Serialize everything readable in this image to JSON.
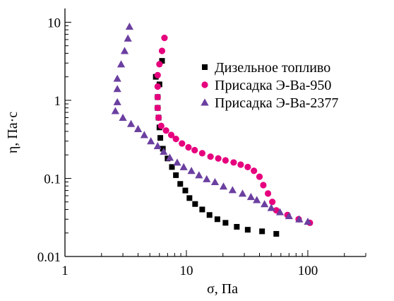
{
  "chart_data": {
    "type": "scatter",
    "title": "",
    "xlabel": "σ, Па",
    "ylabel": "η, Па·с",
    "xscale": "log",
    "yscale": "log",
    "xlim": [
      1,
      300
    ],
    "ylim": [
      0.01,
      15
    ],
    "grid": false,
    "legend_position": "right",
    "x_ticks": [
      {
        "value": 1,
        "label": "1"
      },
      {
        "value": 10,
        "label": "10"
      },
      {
        "value": 100,
        "label": "100"
      }
    ],
    "y_ticks": [
      {
        "value": 0.01,
        "label": "0.01"
      },
      {
        "value": 0.1,
        "label": "0.1"
      },
      {
        "value": 1,
        "label": "1"
      },
      {
        "value": 10,
        "label": "10"
      }
    ],
    "series": [
      {
        "name": "Дизельное топливо",
        "marker": "square",
        "color": "#000000",
        "points": [
          [
            6.3,
            3.2
          ],
          [
            6.0,
            1.6
          ],
          [
            5.6,
            2.0
          ],
          [
            5.8,
            1.1
          ],
          [
            5.8,
            0.8
          ],
          [
            5.9,
            0.6
          ],
          [
            6.0,
            0.45
          ],
          [
            6.1,
            0.33
          ],
          [
            6.4,
            0.24
          ],
          [
            7.0,
            0.18
          ],
          [
            7.6,
            0.14
          ],
          [
            8.2,
            0.11
          ],
          [
            8.9,
            0.085
          ],
          [
            9.8,
            0.07
          ],
          [
            10.6,
            0.056
          ],
          [
            11.8,
            0.047
          ],
          [
            13.5,
            0.04
          ],
          [
            15.5,
            0.034
          ],
          [
            18,
            0.03
          ],
          [
            21,
            0.027
          ],
          [
            26,
            0.024
          ],
          [
            32,
            0.022
          ],
          [
            42,
            0.021
          ],
          [
            55,
            0.0195
          ]
        ]
      },
      {
        "name": "Присадка Э-Ва-950",
        "marker": "circle",
        "color": "#e6007e",
        "points": [
          [
            6.6,
            6.3
          ],
          [
            6.3,
            4.3
          ],
          [
            6.0,
            2.9
          ],
          [
            5.8,
            2.1
          ],
          [
            5.8,
            1.5
          ],
          [
            5.8,
            1.1
          ],
          [
            5.8,
            0.8
          ],
          [
            5.9,
            0.6
          ],
          [
            6.2,
            0.47
          ],
          [
            6.8,
            0.41
          ],
          [
            7.5,
            0.36
          ],
          [
            8.2,
            0.32
          ],
          [
            9.2,
            0.28
          ],
          [
            10.4,
            0.25
          ],
          [
            11.7,
            0.23
          ],
          [
            13.5,
            0.21
          ],
          [
            15.8,
            0.19
          ],
          [
            18.3,
            0.18
          ],
          [
            21,
            0.17
          ],
          [
            24.5,
            0.16
          ],
          [
            28,
            0.15
          ],
          [
            32,
            0.14
          ],
          [
            36,
            0.125
          ],
          [
            40,
            0.105
          ],
          [
            43,
            0.082
          ],
          [
            47,
            0.064
          ],
          [
            51,
            0.05
          ],
          [
            55,
            0.039
          ],
          [
            68,
            0.034
          ],
          [
            84,
            0.03
          ],
          [
            104,
            0.027
          ]
        ]
      },
      {
        "name": "Присадка Э-Ва-2377",
        "marker": "triangle",
        "color": "#6b3fa0",
        "points": [
          [
            3.4,
            8.8
          ],
          [
            3.3,
            6.2
          ],
          [
            3.1,
            4.3
          ],
          [
            2.9,
            2.9
          ],
          [
            2.7,
            1.9
          ],
          [
            2.7,
            1.4
          ],
          [
            2.7,
            0.95
          ],
          [
            2.6,
            0.73
          ],
          [
            3.0,
            0.6
          ],
          [
            3.5,
            0.5
          ],
          [
            4.0,
            0.43
          ],
          [
            4.5,
            0.36
          ],
          [
            5.1,
            0.3
          ],
          [
            5.8,
            0.26
          ],
          [
            6.5,
            0.22
          ],
          [
            7.3,
            0.185
          ],
          [
            8.4,
            0.16
          ],
          [
            9.5,
            0.14
          ],
          [
            11,
            0.125
          ],
          [
            12.7,
            0.11
          ],
          [
            14.7,
            0.098
          ],
          [
            17.2,
            0.09
          ],
          [
            20.2,
            0.079
          ],
          [
            24,
            0.071
          ],
          [
            29,
            0.064
          ],
          [
            34,
            0.058
          ],
          [
            38,
            0.053
          ],
          [
            44,
            0.047
          ],
          [
            50,
            0.042
          ],
          [
            59,
            0.037
          ],
          [
            70,
            0.033
          ],
          [
            85,
            0.03
          ],
          [
            100,
            0.028
          ]
        ]
      }
    ]
  }
}
